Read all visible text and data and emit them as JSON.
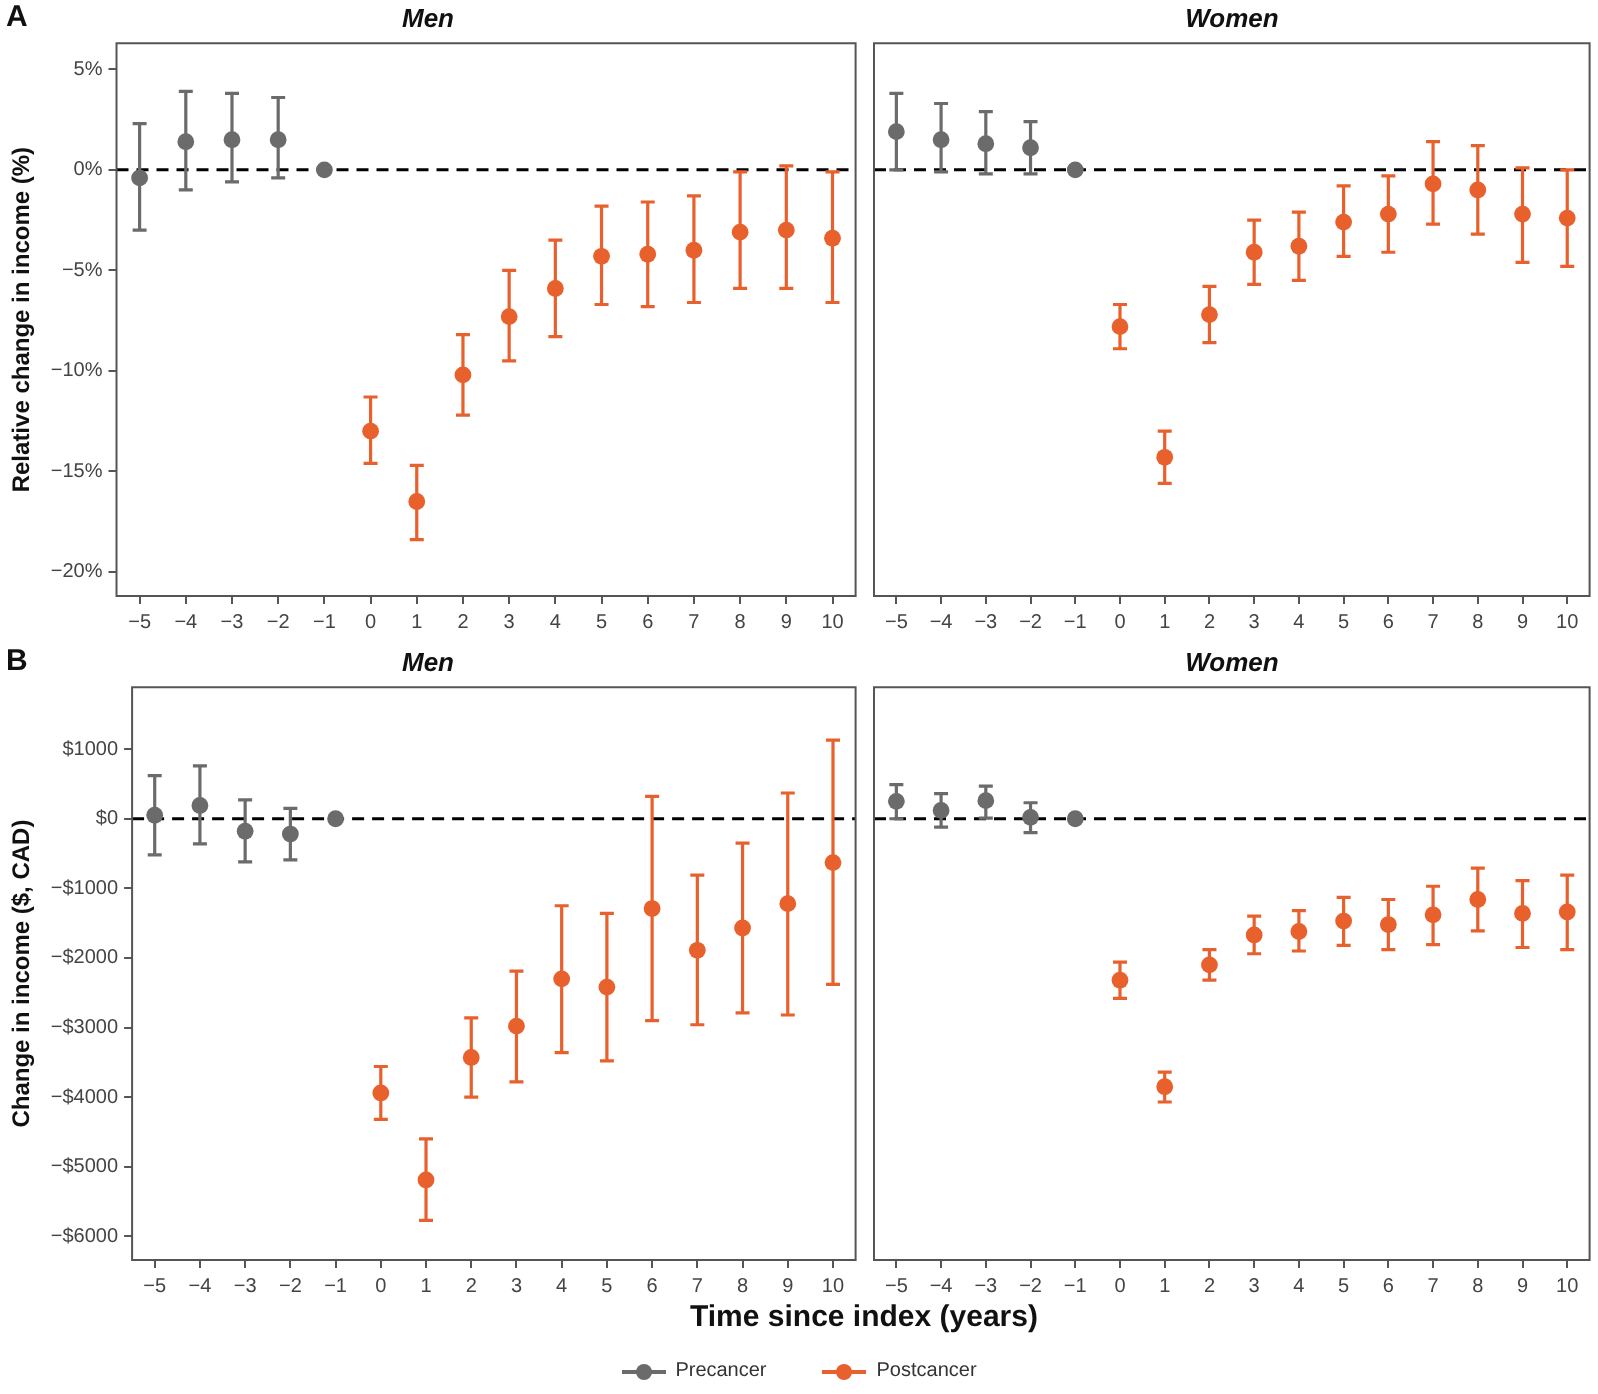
{
  "chart_data": [
    {
      "type": "scatter",
      "title": "Men",
      "ylabel": "Relative change in income (%)",
      "annotations": [
        "A"
      ],
      "categories": [
        "−5",
        "−4",
        "−3",
        "−2",
        "−1",
        "0",
        "1",
        "2",
        "3",
        "4",
        "5",
        "6",
        "7",
        "8",
        "9",
        "10"
      ],
      "series": [
        {
          "color": "#6b6b6b",
          "values": [
            -0.4,
            1.4,
            1.5,
            1.5,
            0,
            null,
            null,
            null,
            null,
            null,
            null,
            null,
            null,
            null,
            null,
            null
          ],
          "errors": [
            [
              -3.0,
              2.3
            ],
            [
              -1.0,
              3.9
            ],
            [
              -0.6,
              3.8
            ],
            [
              -0.4,
              3.6
            ],
            null,
            null,
            null,
            null,
            null,
            null,
            null,
            null,
            null,
            null,
            null,
            null
          ]
        },
        {
          "color": "#e8602c",
          "values": [
            null,
            null,
            null,
            null,
            null,
            -13.0,
            -16.5,
            -10.2,
            -7.3,
            -5.9,
            -4.3,
            -4.2,
            -4.0,
            -3.1,
            -3.0,
            -3.4
          ],
          "errors": [
            null,
            null,
            null,
            null,
            null,
            [
              -14.6,
              -11.3
            ],
            [
              -18.4,
              -14.7
            ],
            [
              -12.2,
              -8.2
            ],
            [
              -9.5,
              -5.0
            ],
            [
              -8.3,
              -3.5
            ],
            [
              -6.7,
              -1.8
            ],
            [
              -6.8,
              -1.6
            ],
            [
              -6.6,
              -1.3
            ],
            [
              -5.9,
              -0.1
            ],
            [
              -5.9,
              0.2
            ],
            [
              -6.6,
              -0.1
            ]
          ]
        }
      ],
      "ylim": [
        -21.2,
        6.3
      ],
      "yticks": [
        {
          "value": -20,
          "label": "−20%"
        },
        {
          "value": -15,
          "label": "−15%"
        },
        {
          "value": -10,
          "label": "−10%"
        },
        {
          "value": -5,
          "label": "−5%"
        },
        {
          "value": 0,
          "label": "0%"
        },
        {
          "value": 5,
          "label": "5%"
        }
      ],
      "ref_lines": [
        {
          "axis": "y",
          "value": 0,
          "color": "#000000",
          "line_style": "dashed"
        }
      ],
      "grid": false,
      "legend": false,
      "marker": "circle"
    },
    {
      "type": "scatter",
      "title": "Women",
      "categories": [
        "−5",
        "−4",
        "−3",
        "−2",
        "−1",
        "0",
        "1",
        "2",
        "3",
        "4",
        "5",
        "6",
        "7",
        "8",
        "9",
        "10"
      ],
      "series": [
        {
          "color": "#6b6b6b",
          "values": [
            1.9,
            1.5,
            1.3,
            1.1,
            0,
            null,
            null,
            null,
            null,
            null,
            null,
            null,
            null,
            null,
            null,
            null
          ],
          "errors": [
            [
              0.0,
              3.8
            ],
            [
              -0.1,
              3.3
            ],
            [
              -0.2,
              2.9
            ],
            [
              -0.2,
              2.4
            ],
            null,
            null,
            null,
            null,
            null,
            null,
            null,
            null,
            null,
            null,
            null,
            null
          ]
        },
        {
          "color": "#e8602c",
          "values": [
            null,
            null,
            null,
            null,
            null,
            -7.8,
            -14.3,
            -7.2,
            -4.1,
            -3.8,
            -2.6,
            -2.2,
            -0.7,
            -1.0,
            -2.2,
            -2.4
          ],
          "errors": [
            null,
            null,
            null,
            null,
            null,
            [
              -8.9,
              -6.7
            ],
            [
              -15.6,
              -13.0
            ],
            [
              -8.6,
              -5.8
            ],
            [
              -5.7,
              -2.5
            ],
            [
              -5.5,
              -2.1
            ],
            [
              -4.3,
              -0.8
            ],
            [
              -4.1,
              -0.3
            ],
            [
              -2.7,
              1.4
            ],
            [
              -3.2,
              1.2
            ],
            [
              -4.6,
              0.1
            ],
            [
              -4.8,
              0.0
            ]
          ]
        }
      ],
      "ylim": [
        -21.2,
        6.3
      ],
      "tick_labels": "x",
      "ref_lines": [
        {
          "axis": "y",
          "value": 0,
          "color": "#000000",
          "line_style": "dashed"
        }
      ],
      "grid": false,
      "legend": false,
      "marker": "circle"
    },
    {
      "type": "scatter",
      "title": "Men",
      "ylabel": "Change in income ($, CAD)",
      "xlabel": "Time since index (years)",
      "annotations": [
        "B"
      ],
      "categories": [
        "−5",
        "−4",
        "−3",
        "−2",
        "−1",
        "0",
        "1",
        "2",
        "3",
        "4",
        "5",
        "6",
        "7",
        "8",
        "9",
        "10"
      ],
      "series": [
        {
          "name": "Precancer",
          "color": "#6b6b6b",
          "values": [
            50,
            190,
            -180,
            -220,
            0,
            null,
            null,
            null,
            null,
            null,
            null,
            null,
            null,
            null,
            null,
            null
          ],
          "errors": [
            [
              -520,
              620
            ],
            [
              -360,
              760
            ],
            [
              -620,
              270
            ],
            [
              -590,
              150
            ],
            null,
            null,
            null,
            null,
            null,
            null,
            null,
            null,
            null,
            null,
            null,
            null
          ]
        },
        {
          "name": "Postcancer",
          "color": "#e8602c",
          "values": [
            null,
            null,
            null,
            null,
            null,
            -3940,
            -5190,
            -3430,
            -2980,
            -2300,
            -2420,
            -1290,
            -1890,
            -1570,
            -1220,
            -630
          ],
          "errors": [
            null,
            null,
            null,
            null,
            null,
            [
              -4320,
              -3560
            ],
            [
              -5770,
              -4600
            ],
            [
              -4000,
              -2860
            ],
            [
              -3780,
              -2190
            ],
            [
              -3360,
              -1250
            ],
            [
              -3480,
              -1360
            ],
            [
              -2900,
              320
            ],
            [
              -2960,
              -810
            ],
            [
              -2790,
              -350
            ],
            [
              -2820,
              370
            ],
            [
              -2380,
              1130
            ]
          ]
        }
      ],
      "ylim": [
        -6340,
        1890
      ],
      "yticks": [
        {
          "value": -6000,
          "label": "−$6000"
        },
        {
          "value": -5000,
          "label": "−$5000"
        },
        {
          "value": -4000,
          "label": "−$4000"
        },
        {
          "value": -3000,
          "label": "−$3000"
        },
        {
          "value": -2000,
          "label": "−$2000"
        },
        {
          "value": -1000,
          "label": "−$1000"
        },
        {
          "value": 0,
          "label": "$0"
        },
        {
          "value": 1000,
          "label": "$1000"
        }
      ],
      "ref_lines": [
        {
          "axis": "y",
          "value": 0,
          "color": "#000000",
          "line_style": "dashed"
        }
      ],
      "grid": false,
      "legend": "bottom",
      "marker": "circle"
    },
    {
      "type": "scatter",
      "title": "Women",
      "categories": [
        "−5",
        "−4",
        "−3",
        "−2",
        "−1",
        "0",
        "1",
        "2",
        "3",
        "4",
        "5",
        "6",
        "7",
        "8",
        "9",
        "10"
      ],
      "series": [
        {
          "color": "#6b6b6b",
          "values": [
            250,
            120,
            260,
            20,
            0,
            null,
            null,
            null,
            null,
            null,
            null,
            null,
            null,
            null,
            null,
            null
          ],
          "errors": [
            [
              0,
              490
            ],
            [
              -120,
              360
            ],
            [
              10,
              470
            ],
            [
              -200,
              230
            ],
            null,
            null,
            null,
            null,
            null,
            null,
            null,
            null,
            null,
            null,
            null,
            null
          ]
        },
        {
          "color": "#e8602c",
          "values": [
            null,
            null,
            null,
            null,
            null,
            -2320,
            -3850,
            -2100,
            -1670,
            -1620,
            -1470,
            -1520,
            -1380,
            -1160,
            -1360,
            -1340
          ],
          "errors": [
            null,
            null,
            null,
            null,
            null,
            [
              -2580,
              -2060
            ],
            [
              -4070,
              -3640
            ],
            [
              -2320,
              -1880
            ],
            [
              -1940,
              -1400
            ],
            [
              -1900,
              -1320
            ],
            [
              -1820,
              -1130
            ],
            [
              -1880,
              -1160
            ],
            [
              -1810,
              -970
            ],
            [
              -1610,
              -710
            ],
            [
              -1850,
              -890
            ],
            [
              -1880,
              -810
            ]
          ]
        }
      ],
      "ylim": [
        -6340,
        1890
      ],
      "tick_labels": "x",
      "ref_lines": [
        {
          "axis": "y",
          "value": 0,
          "color": "#000000",
          "line_style": "dashed"
        }
      ],
      "grid": false,
      "legend": false,
      "marker": "circle"
    }
  ]
}
